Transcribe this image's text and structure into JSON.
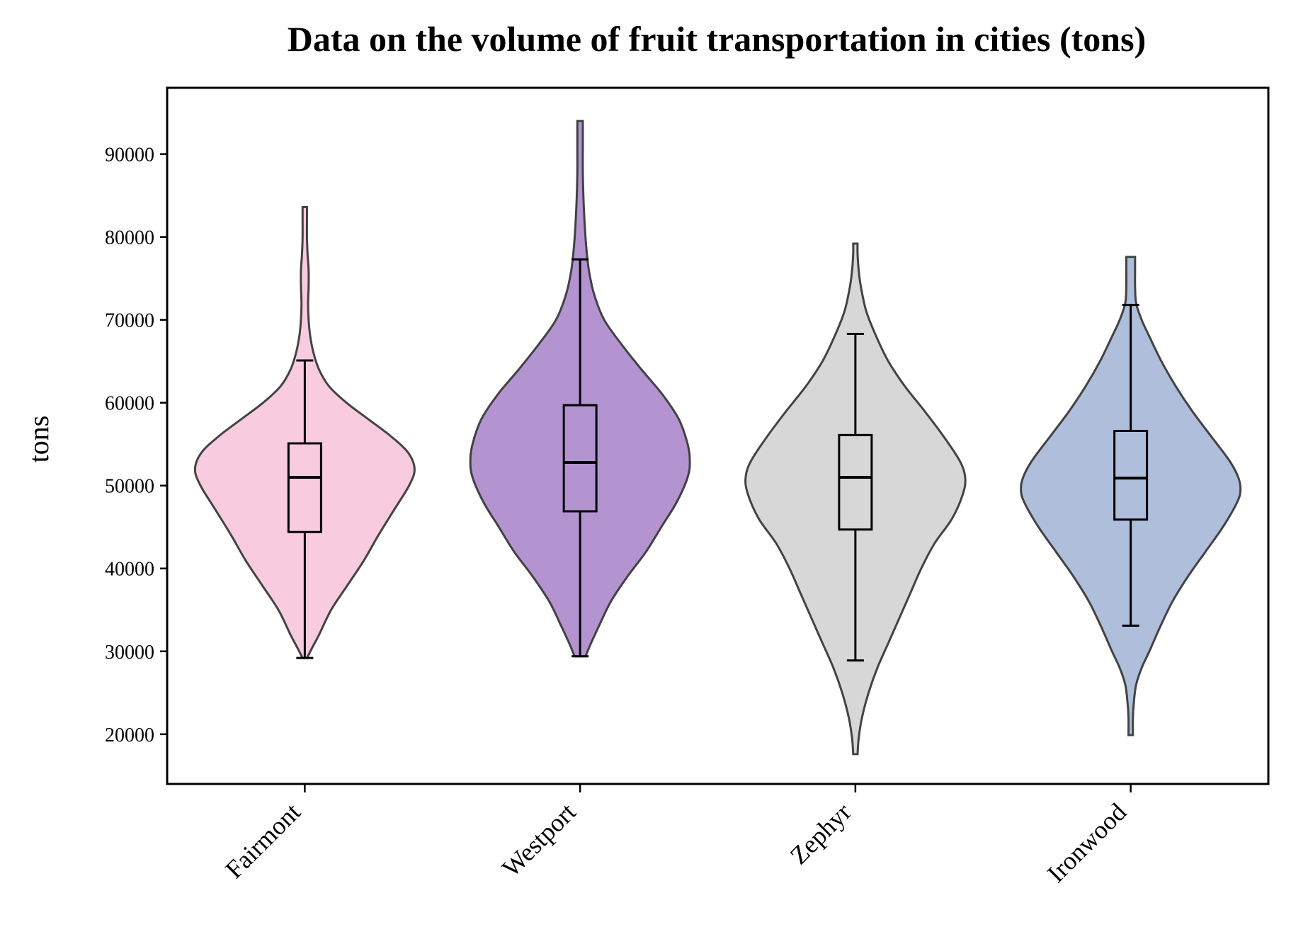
{
  "chart_data": {
    "type": "violin",
    "title": "Data on the volume of fruit transportation in cities (tons)",
    "xlabel": "",
    "ylabel": "tons",
    "ylim": [
      14000,
      98000
    ],
    "yticks": [
      20000,
      30000,
      40000,
      50000,
      60000,
      70000,
      80000,
      90000
    ],
    "grid": false,
    "categories": [
      "Fairmont",
      "Westport",
      "Zephyr",
      "Ironwood"
    ],
    "colors": {
      "Fairmont": "#f8cbdf",
      "Westport": "#b394d1",
      "Zephyr": "#d7d7d7",
      "Ironwood": "#afbedb"
    },
    "series": [
      {
        "category": "Fairmont",
        "min": 29200,
        "max": 83600,
        "whisker_low": 29200,
        "q1": 44400,
        "median": 51000,
        "q3": 55100,
        "whisker_high": 65100,
        "density": [
          [
            29200,
            0.02
          ],
          [
            30500,
            0.07
          ],
          [
            32000,
            0.13
          ],
          [
            35000,
            0.24
          ],
          [
            38000,
            0.39
          ],
          [
            41000,
            0.54
          ],
          [
            44000,
            0.67
          ],
          [
            47000,
            0.81
          ],
          [
            50000,
            0.95
          ],
          [
            52000,
            1.0
          ],
          [
            54000,
            0.94
          ],
          [
            56000,
            0.78
          ],
          [
            58000,
            0.58
          ],
          [
            60000,
            0.38
          ],
          [
            62000,
            0.22
          ],
          [
            64000,
            0.13
          ],
          [
            66000,
            0.08
          ],
          [
            68000,
            0.05
          ],
          [
            70000,
            0.035
          ],
          [
            72000,
            0.03
          ],
          [
            74000,
            0.035
          ],
          [
            76000,
            0.035
          ],
          [
            78000,
            0.025
          ],
          [
            80000,
            0.02
          ],
          [
            82000,
            0.02
          ],
          [
            83600,
            0.02
          ]
        ]
      },
      {
        "category": "Westport",
        "min": 29400,
        "max": 94000,
        "whisker_low": 29400,
        "q1": 46900,
        "median": 52800,
        "q3": 59700,
        "whisker_high": 77300,
        "density": [
          [
            29400,
            0.05
          ],
          [
            31000,
            0.1
          ],
          [
            33000,
            0.17
          ],
          [
            36000,
            0.28
          ],
          [
            39000,
            0.43
          ],
          [
            42000,
            0.6
          ],
          [
            45000,
            0.74
          ],
          [
            48000,
            0.88
          ],
          [
            51000,
            0.98
          ],
          [
            53000,
            1.0
          ],
          [
            55000,
            0.98
          ],
          [
            58000,
            0.9
          ],
          [
            61000,
            0.75
          ],
          [
            64000,
            0.56
          ],
          [
            67000,
            0.38
          ],
          [
            70000,
            0.22
          ],
          [
            73000,
            0.13
          ],
          [
            76000,
            0.08
          ],
          [
            79000,
            0.055
          ],
          [
            82000,
            0.04
          ],
          [
            85000,
            0.03
          ],
          [
            88000,
            0.025
          ],
          [
            91000,
            0.025
          ],
          [
            94000,
            0.025
          ]
        ]
      },
      {
        "category": "Zephyr",
        "min": 17600,
        "max": 79200,
        "whisker_low": 28900,
        "q1": 44700,
        "median": 51000,
        "q3": 56100,
        "whisker_high": 68300,
        "density": [
          [
            17600,
            0.02
          ],
          [
            19500,
            0.03
          ],
          [
            22000,
            0.06
          ],
          [
            25000,
            0.12
          ],
          [
            28000,
            0.2
          ],
          [
            31000,
            0.3
          ],
          [
            34000,
            0.4
          ],
          [
            37000,
            0.5
          ],
          [
            40000,
            0.6
          ],
          [
            43000,
            0.72
          ],
          [
            46000,
            0.88
          ],
          [
            49000,
            0.98
          ],
          [
            51000,
            1.0
          ],
          [
            53000,
            0.95
          ],
          [
            56000,
            0.8
          ],
          [
            59000,
            0.63
          ],
          [
            62000,
            0.45
          ],
          [
            65000,
            0.3
          ],
          [
            68000,
            0.19
          ],
          [
            71000,
            0.1
          ],
          [
            74000,
            0.05
          ],
          [
            76000,
            0.03
          ],
          [
            78000,
            0.02
          ],
          [
            79200,
            0.02
          ]
        ]
      },
      {
        "category": "Ironwood",
        "min": 19900,
        "max": 77600,
        "whisker_low": 33100,
        "q1": 45900,
        "median": 50900,
        "q3": 56600,
        "whisker_high": 71800,
        "density": [
          [
            19900,
            0.02
          ],
          [
            22000,
            0.02
          ],
          [
            24000,
            0.03
          ],
          [
            26000,
            0.05
          ],
          [
            28000,
            0.1
          ],
          [
            30000,
            0.17
          ],
          [
            33000,
            0.27
          ],
          [
            36000,
            0.38
          ],
          [
            39000,
            0.52
          ],
          [
            42000,
            0.68
          ],
          [
            45000,
            0.84
          ],
          [
            48000,
            0.97
          ],
          [
            49500,
            1.0
          ],
          [
            51000,
            0.98
          ],
          [
            53000,
            0.9
          ],
          [
            56000,
            0.73
          ],
          [
            59000,
            0.56
          ],
          [
            62000,
            0.41
          ],
          [
            65000,
            0.28
          ],
          [
            68000,
            0.17
          ],
          [
            70000,
            0.1
          ],
          [
            72000,
            0.05
          ],
          [
            74000,
            0.04
          ],
          [
            76000,
            0.04
          ],
          [
            77600,
            0.04
          ]
        ]
      }
    ]
  }
}
